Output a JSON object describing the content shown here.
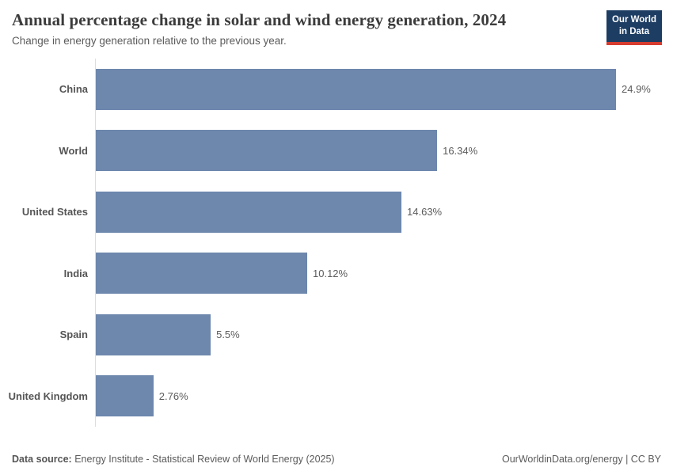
{
  "header": {
    "title": "Annual percentage change in solar and wind energy generation, 2024",
    "subtitle": "Change in energy generation relative to the previous year.",
    "logo": {
      "line1": "Our World",
      "line2": "in Data"
    }
  },
  "chart_data": {
    "type": "bar",
    "orientation": "horizontal",
    "title": "Annual percentage change in solar and wind energy generation, 2024",
    "subtitle": "Change in energy generation relative to the previous year.",
    "categories": [
      "China",
      "World",
      "United States",
      "India",
      "Spain",
      "United Kingdom"
    ],
    "values": [
      24.9,
      16.34,
      14.63,
      10.12,
      5.5,
      2.76
    ],
    "value_labels": [
      "24.9%",
      "16.34%",
      "14.63%",
      "10.12%",
      "5.5%",
      "2.76%"
    ],
    "unit": "%",
    "xlim": [
      0,
      25
    ],
    "grid": false,
    "legend": "none",
    "bar_color": "#6d87ad"
  },
  "footer": {
    "datasource_label": "Data source:",
    "datasource_text": " Energy Institute - Statistical Review of World Energy (2025)",
    "right_text": "OurWorldinData.org/energy | CC BY"
  },
  "colors": {
    "bar": "#6d87ad",
    "axis_line": "#dddddd",
    "logo_bg": "#1d3d63",
    "logo_accent": "#d63c2f",
    "title_text": "#3b3b3b",
    "muted_text": "#5b5b5b"
  }
}
